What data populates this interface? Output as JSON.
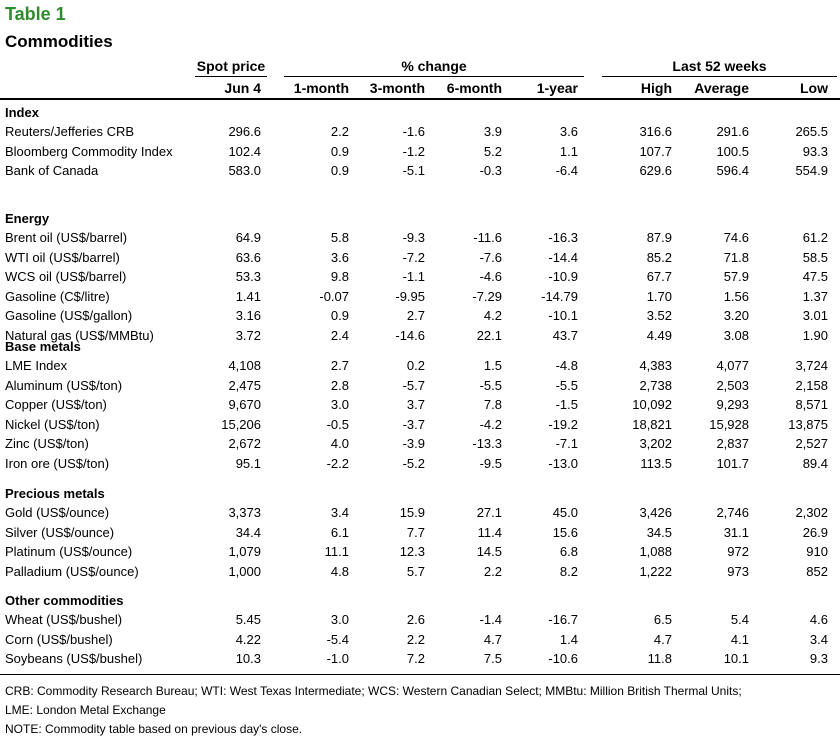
{
  "title": "Table 1",
  "subtitle": "Commodities",
  "groups": {
    "spot": "Spot price",
    "pct": "% change",
    "last52": "Last 52 weeks"
  },
  "columns": [
    "Jun 4",
    "1-month",
    "3-month",
    "6-month",
    "1-year",
    "High",
    "Average",
    "Low"
  ],
  "sections": [
    {
      "name": "Index",
      "rows": [
        {
          "label": "Reuters/Jefferies CRB",
          "values": [
            "296.6",
            "2.2",
            "-1.6",
            "3.9",
            "3.6",
            "316.6",
            "291.6",
            "265.5"
          ]
        },
        {
          "label": "Bloomberg Commodity Index",
          "values": [
            "102.4",
            "0.9",
            "-1.2",
            "5.2",
            "1.1",
            "107.7",
            "100.5",
            "93.3"
          ]
        },
        {
          "label": "Bank of Canada",
          "values": [
            "583.0",
            "0.9",
            "-5.1",
            "-0.3",
            "-6.4",
            "629.6",
            "596.4",
            "554.9"
          ]
        }
      ]
    },
    {
      "name": "Energy",
      "rows": [
        {
          "label": "Brent oil (US$/barrel)",
          "values": [
            "64.9",
            "5.8",
            "-9.3",
            "-11.6",
            "-16.3",
            "87.9",
            "74.6",
            "61.2"
          ]
        },
        {
          "label": "WTI oil (US$/barrel)",
          "values": [
            "63.6",
            "3.6",
            "-7.2",
            "-7.6",
            "-14.4",
            "85.2",
            "71.8",
            "58.5"
          ]
        },
        {
          "label": "WCS oil (US$/barrel)",
          "values": [
            "53.3",
            "9.8",
            "-1.1",
            "-4.6",
            "-10.9",
            "67.7",
            "57.9",
            "47.5"
          ]
        },
        {
          "label": "Gasoline (C$/litre)",
          "values": [
            "1.41",
            "-0.07",
            "-9.95",
            "-7.29",
            "-14.79",
            "1.70",
            "1.56",
            "1.37"
          ]
        },
        {
          "label": "Gasoline (US$/gallon)",
          "values": [
            "3.16",
            "0.9",
            "2.7",
            "4.2",
            "-10.1",
            "3.52",
            "3.20",
            "3.01"
          ]
        },
        {
          "label": "Natural gas (US$/MMBtu)",
          "values": [
            "3.72",
            "2.4",
            "-14.6",
            "22.1",
            "43.7",
            "4.49",
            "3.08",
            "1.90"
          ]
        }
      ]
    },
    {
      "name": "Base metals",
      "rows": [
        {
          "label": "LME Index",
          "values": [
            "4,108",
            "2.7",
            "0.2",
            "1.5",
            "-4.8",
            "4,383",
            "4,077",
            "3,724"
          ]
        },
        {
          "label": "Aluminum (US$/ton)",
          "values": [
            "2,475",
            "2.8",
            "-5.7",
            "-5.5",
            "-5.5",
            "2,738",
            "2,503",
            "2,158"
          ]
        },
        {
          "label": "Copper (US$/ton)",
          "values": [
            "9,670",
            "3.0",
            "3.7",
            "7.8",
            "-1.5",
            "10,092",
            "9,293",
            "8,571"
          ]
        },
        {
          "label": "Nickel (US$/ton)",
          "values": [
            "15,206",
            "-0.5",
            "-3.7",
            "-4.2",
            "-19.2",
            "18,821",
            "15,928",
            "13,875"
          ]
        },
        {
          "label": "Zinc (US$/ton)",
          "values": [
            "2,672",
            "4.0",
            "-3.9",
            "-13.3",
            "-7.1",
            "3,202",
            "2,837",
            "2,527"
          ]
        },
        {
          "label": "Iron ore (US$/ton)",
          "values": [
            "95.1",
            "-2.2",
            "-5.2",
            "-9.5",
            "-13.0",
            "113.5",
            "101.7",
            "89.4"
          ]
        }
      ]
    },
    {
      "name": "Precious metals",
      "rows": [
        {
          "label": "Gold (US$/ounce)",
          "values": [
            "3,373",
            "3.4",
            "15.9",
            "27.1",
            "45.0",
            "3,426",
            "2,746",
            "2,302"
          ]
        },
        {
          "label": "Silver (US$/ounce)",
          "values": [
            "34.4",
            "6.1",
            "7.7",
            "11.4",
            "15.6",
            "34.5",
            "31.1",
            "26.9"
          ]
        },
        {
          "label": "Platinum (US$/ounce)",
          "values": [
            "1,079",
            "11.1",
            "12.3",
            "14.5",
            "6.8",
            "1,088",
            "972",
            "910"
          ]
        },
        {
          "label": "Palladium (US$/ounce)",
          "values": [
            "1,000",
            "4.8",
            "5.7",
            "2.2",
            "8.2",
            "1,222",
            "973",
            "852"
          ]
        }
      ]
    },
    {
      "name": "Other commodities",
      "rows": [
        {
          "label": "Wheat (US$/bushel)",
          "values": [
            "5.45",
            "3.0",
            "2.6",
            "-1.4",
            "-16.7",
            "6.5",
            "5.4",
            "4.6"
          ]
        },
        {
          "label": "Corn (US$/bushel)",
          "values": [
            "4.22",
            "-5.4",
            "2.2",
            "4.7",
            "1.4",
            "4.7",
            "4.1",
            "3.4"
          ]
        },
        {
          "label": "Soybeans (US$/bushel)",
          "values": [
            "10.3",
            "-1.0",
            "7.2",
            "7.5",
            "-10.6",
            "11.8",
            "10.1",
            "9.3"
          ]
        }
      ]
    }
  ],
  "footnotes": [
    "CRB: Commodity Research Bureau; WTI: West Texas Intermediate; WCS: Western Canadian Select; MMBtu: Million British Thermal Units;",
    "LME: London Metal Exchange",
    "NOTE: Commodity table based on previous day's close."
  ]
}
